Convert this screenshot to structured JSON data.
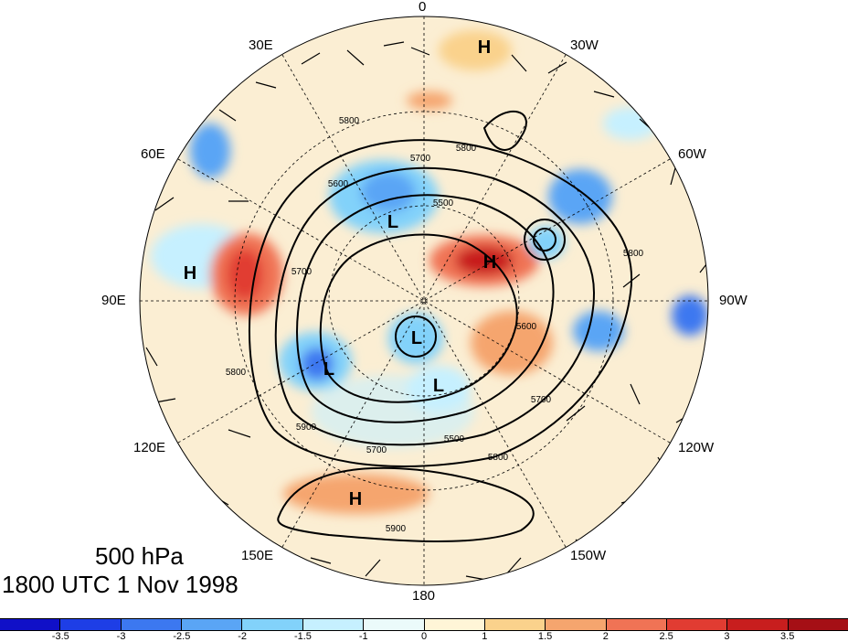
{
  "map": {
    "projection": "north-polar-stereographic",
    "longitude_labels": [
      {
        "id": "lon-0",
        "text": "0"
      },
      {
        "id": "lon-30w",
        "text": "30W"
      },
      {
        "id": "lon-60w",
        "text": "60W"
      },
      {
        "id": "lon-90w",
        "text": "90W"
      },
      {
        "id": "lon-120w",
        "text": "120W"
      },
      {
        "id": "lon-150w",
        "text": "150W"
      },
      {
        "id": "lon-180",
        "text": "180"
      },
      {
        "id": "lon-150e",
        "text": "150E"
      },
      {
        "id": "lon-120e",
        "text": "120E"
      },
      {
        "id": "lon-90e",
        "text": "90E"
      },
      {
        "id": "lon-60e",
        "text": "60E"
      },
      {
        "id": "lon-30e",
        "text": "30E"
      }
    ],
    "pressure_centers": [
      {
        "label": "H",
        "type": "high"
      },
      {
        "label": "H",
        "type": "high"
      },
      {
        "label": "H",
        "type": "high"
      },
      {
        "label": "H",
        "type": "high"
      },
      {
        "label": "L",
        "type": "low"
      },
      {
        "label": "L",
        "type": "low"
      },
      {
        "label": "L",
        "type": "low"
      },
      {
        "label": "L",
        "type": "low"
      }
    ],
    "contour_labels": [
      "5800",
      "5800",
      "5700",
      "5700",
      "5800",
      "5900",
      "5800",
      "5700",
      "5500",
      "5800",
      "5700",
      "5600",
      "5600",
      "5500",
      "5900"
    ]
  },
  "title": {
    "line1": "500 hPa",
    "line2": "1800 UTC 1 Nov 1998"
  },
  "colorbar": {
    "colors": [
      "#1010c8",
      "#1e3ee6",
      "#3c78f0",
      "#5aa5f5",
      "#82d2fa",
      "#c6f0ff",
      "#ebfafa",
      "#fff5d7",
      "#fad28c",
      "#f5a56e",
      "#f07355",
      "#e13c32",
      "#c81e1e",
      "#a50f15"
    ],
    "tick_labels": [
      "-3.5",
      "-3",
      "-2.5",
      "-2",
      "-1.5",
      "-1",
      "0",
      "1",
      "1.5",
      "2",
      "2.5",
      "3",
      "3.5"
    ]
  }
}
